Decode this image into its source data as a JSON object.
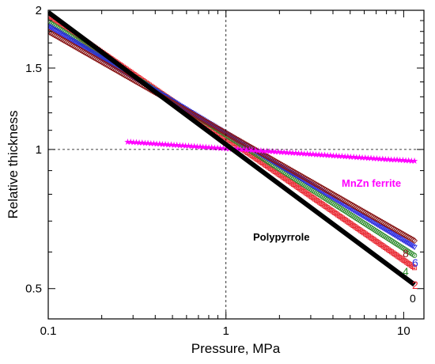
{
  "chart_data": {
    "type": "scatter",
    "xlabel": "Pressure, MPa",
    "ylabel": "Relative thickness",
    "xscale": "log",
    "yscale": "log",
    "xlim": [
      0.1,
      13
    ],
    "ylim": [
      0.43,
      2.0
    ],
    "xticks": [
      {
        "value": 0.1,
        "label": "0.1"
      },
      {
        "value": 1,
        "label": "1"
      },
      {
        "value": 10,
        "label": "10"
      }
    ],
    "yticks": [
      {
        "value": 0.5,
        "label": "0.5"
      },
      {
        "value": 1,
        "label": "1"
      },
      {
        "value": 1.5,
        "label": "1.5"
      },
      {
        "value": 2,
        "label": "2"
      }
    ],
    "reference_lines": {
      "x": 1,
      "y": 1
    },
    "series": [
      {
        "name": "0",
        "color": "#000000",
        "marker": "line",
        "x_start": 0.1,
        "x_end": 11.5,
        "y_start": 1.98,
        "y_end": 0.51
      },
      {
        "name": "2",
        "color": "#e8202a",
        "marker": "square",
        "x_start": 0.1,
        "x_end": 11.5,
        "y_start": 1.95,
        "y_end": 0.555
      },
      {
        "name": "4",
        "color": "#2e8b2e",
        "marker": "circle",
        "x_start": 0.1,
        "x_end": 11.5,
        "y_start": 1.89,
        "y_end": 0.59
      },
      {
        "name": "6",
        "color": "#2a2ae0",
        "marker": "triangle",
        "x_start": 0.1,
        "x_end": 11.5,
        "y_start": 1.85,
        "y_end": 0.615
      },
      {
        "name": "8",
        "color": "#8a1a1a",
        "marker": "diamond",
        "x_start": 0.1,
        "x_end": 11.5,
        "y_start": 1.8,
        "y_end": 0.635
      },
      {
        "name": "MnZn ferrite",
        "color": "#ff00ff",
        "marker": "star",
        "x_start": 0.28,
        "x_end": 11.5,
        "y_start": 1.04,
        "y_end": 0.945
      }
    ],
    "annotations": [
      {
        "text": "MnZn ferrite",
        "color": "#ff00ff"
      },
      {
        "text": "Polypyrrole",
        "color": "#000000"
      }
    ],
    "end_labels": [
      {
        "text": "8",
        "color": "#8a1a1a"
      },
      {
        "text": "6",
        "color": "#2a2ae0"
      },
      {
        "text": "4",
        "color": "#2e8b2e"
      },
      {
        "text": "2",
        "color": "#e8202a"
      },
      {
        "text": "0",
        "color": "#000000"
      }
    ],
    "grid": false,
    "legend": "none"
  }
}
